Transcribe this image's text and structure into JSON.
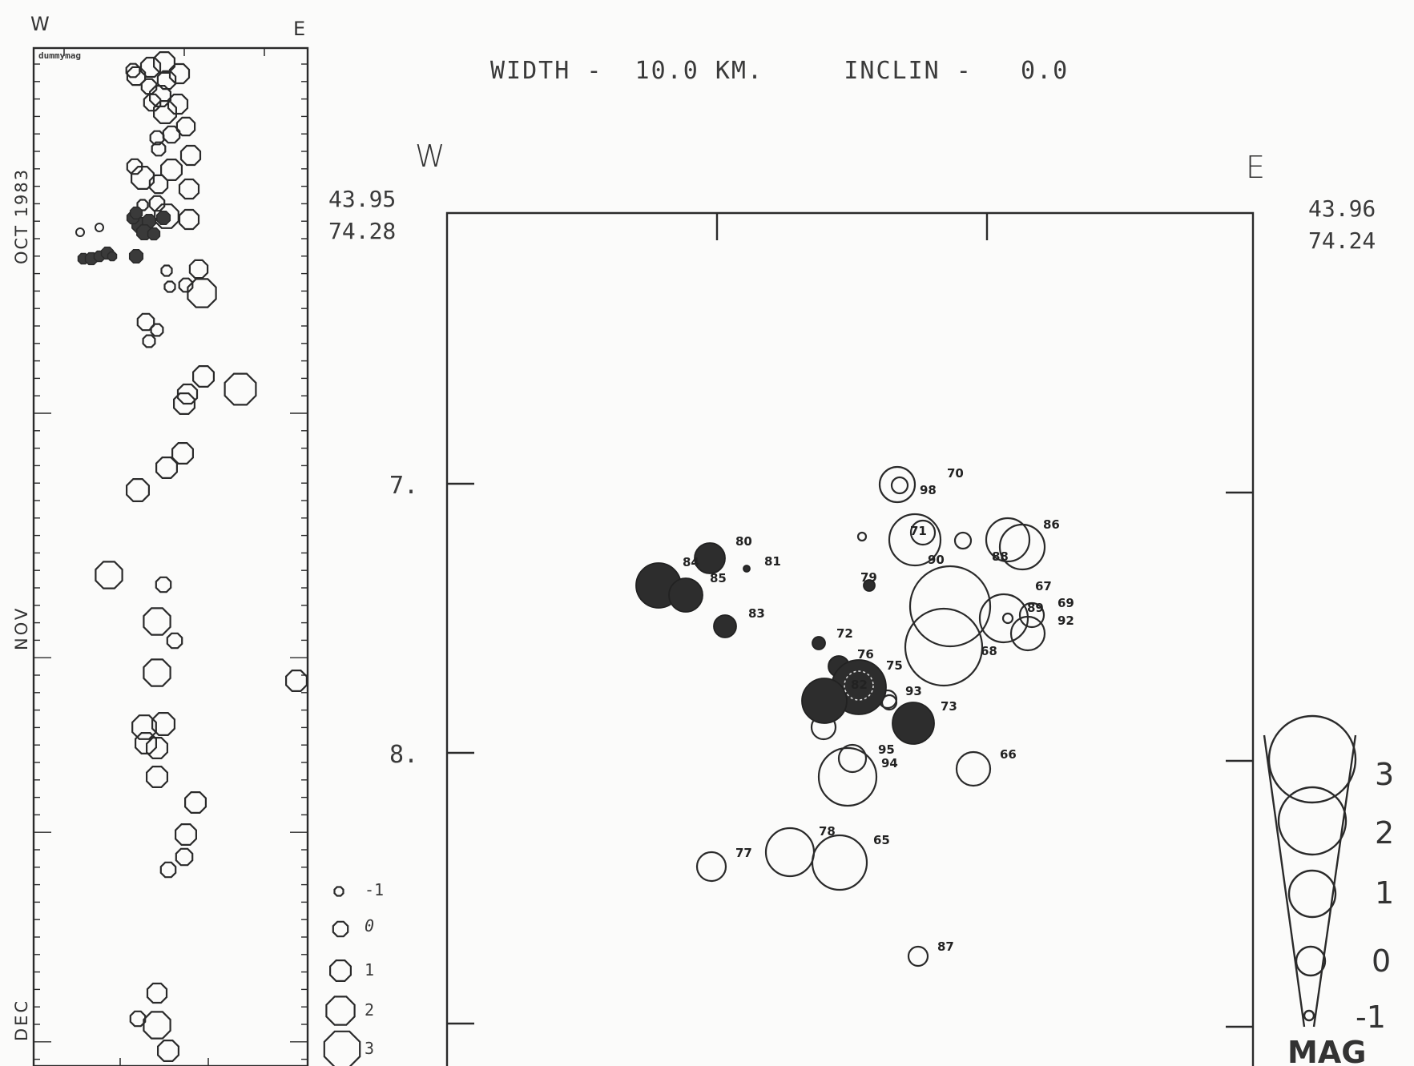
{
  "timeline": {
    "left_label": "W",
    "right_label": "E",
    "box_label": "dummymag",
    "month_labels": [
      "OCT 1983",
      "NOV",
      "DEC"
    ],
    "legend": [
      "-1",
      "0",
      "1",
      "2",
      "3"
    ]
  },
  "section": {
    "header": "WIDTH -  10.0 KM.     INCLIN -   0.0",
    "west": "W",
    "east": "E",
    "left_lat": "43.95",
    "left_lon": "74.28",
    "right_lat": "43.96",
    "right_lon": "74.24",
    "depth_labels": [
      "7.",
      "8."
    ]
  },
  "mag_scale": {
    "values": [
      "3",
      "2",
      "1",
      "0",
      "-1"
    ],
    "title": "MAG"
  },
  "events": [
    {
      "id": "65",
      "filled": false
    },
    {
      "id": "66",
      "filled": false
    },
    {
      "id": "67",
      "filled": false
    },
    {
      "id": "68",
      "filled": false
    },
    {
      "id": "69",
      "filled": false
    },
    {
      "id": "70",
      "filled": false
    },
    {
      "id": "71",
      "filled": false
    },
    {
      "id": "72",
      "filled": true
    },
    {
      "id": "73",
      "filled": false
    },
    {
      "id": "75",
      "filled": false
    },
    {
      "id": "76",
      "filled": true
    },
    {
      "id": "77",
      "filled": false
    },
    {
      "id": "78",
      "filled": false
    },
    {
      "id": "79",
      "filled": true
    },
    {
      "id": "80",
      "filled": true
    },
    {
      "id": "81",
      "filled": true
    },
    {
      "id": "82",
      "filled": true
    },
    {
      "id": "83",
      "filled": true
    },
    {
      "id": "84",
      "filled": true
    },
    {
      "id": "85",
      "filled": true
    },
    {
      "id": "86",
      "filled": false
    },
    {
      "id": "87",
      "filled": false
    },
    {
      "id": "88",
      "filled": false
    },
    {
      "id": "89",
      "filled": false
    },
    {
      "id": "90",
      "filled": false
    },
    {
      "id": "92",
      "filled": false
    },
    {
      "id": "93",
      "filled": false
    },
    {
      "id": "94",
      "filled": false
    },
    {
      "id": "95",
      "filled": false
    },
    {
      "id": "98",
      "filled": false
    }
  ]
}
